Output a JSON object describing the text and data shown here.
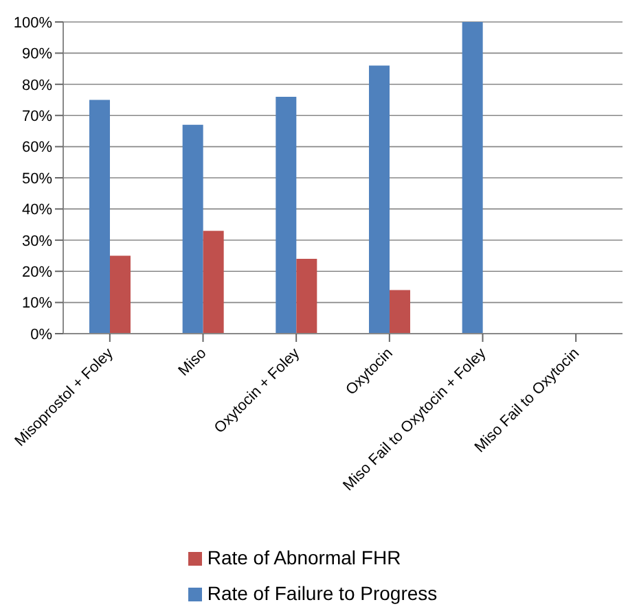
{
  "chart_data": {
    "type": "bar",
    "categories": [
      "Misoprostol + Foley",
      "Miso",
      "Oxytocin + Foley",
      "Oxytocin",
      "Miso Fail to Oxytocin + Foley",
      "Miso Fail to Oxytocin"
    ],
    "series": [
      {
        "name": "Rate of Failure to Progress",
        "color": "#4f81bd",
        "values": [
          75,
          67,
          76,
          86,
          100,
          0
        ]
      },
      {
        "name": "Rate of Abnormal FHR",
        "color": "#c0504d",
        "values": [
          25,
          33,
          24,
          14,
          0,
          0
        ]
      }
    ],
    "ylim": [
      0,
      100
    ],
    "yticks": [
      {
        "value": 0,
        "label": "0%"
      },
      {
        "value": 10,
        "label": "10%"
      },
      {
        "value": 20,
        "label": "20%"
      },
      {
        "value": 30,
        "label": "30%"
      },
      {
        "value": 40,
        "label": "40%"
      },
      {
        "value": 50,
        "label": "50%"
      },
      {
        "value": 60,
        "label": "60%"
      },
      {
        "value": 70,
        "label": "70%"
      },
      {
        "value": 80,
        "label": "80%"
      },
      {
        "value": 90,
        "label": "90%"
      },
      {
        "value": 100,
        "label": "100%"
      }
    ],
    "grid": "y",
    "legend": "bottom"
  }
}
